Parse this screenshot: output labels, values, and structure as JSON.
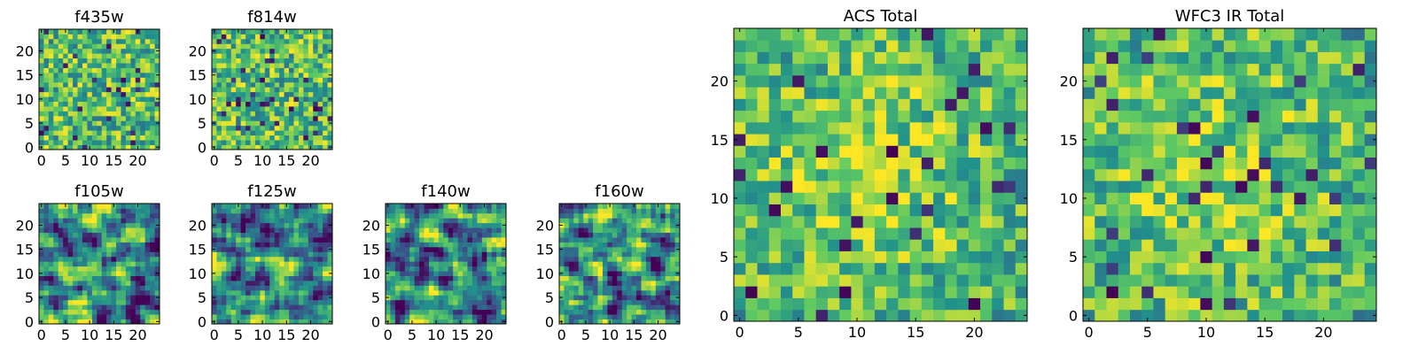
{
  "figure": {
    "colormap": [
      "#440154",
      "#3b528b",
      "#21918c",
      "#5ec962",
      "#fde725"
    ]
  },
  "chart_data": [
    {
      "type": "heatmap",
      "title": "f435w",
      "xticks": [
        "0",
        "5",
        "10",
        "15",
        "20"
      ],
      "yticks": [
        "0",
        "5",
        "10",
        "15",
        "20"
      ],
      "xlim": [
        -0.5,
        24.5
      ],
      "ylim": [
        -0.5,
        24.5
      ],
      "grid": false,
      "pattern": "noise"
    },
    {
      "type": "heatmap",
      "title": "f814w",
      "xticks": [
        "0",
        "5",
        "10",
        "15",
        "20"
      ],
      "yticks": [
        "0",
        "5",
        "10",
        "15",
        "20"
      ],
      "xlim": [
        -0.5,
        24.5
      ],
      "ylim": [
        -0.5,
        24.5
      ],
      "grid": false,
      "pattern": "noise"
    },
    {
      "type": "heatmap",
      "title": "f105w",
      "xticks": [
        "0",
        "5",
        "10",
        "15",
        "20"
      ],
      "yticks": [
        "0",
        "5",
        "10",
        "15",
        "20"
      ],
      "xlim": [
        -0.5,
        24.5
      ],
      "ylim": [
        -0.5,
        24.5
      ],
      "grid": false,
      "pattern": "smooth"
    },
    {
      "type": "heatmap",
      "title": "f125w",
      "xticks": [
        "0",
        "5",
        "10",
        "15",
        "20"
      ],
      "yticks": [
        "0",
        "5",
        "10",
        "15",
        "20"
      ],
      "xlim": [
        -0.5,
        24.5
      ],
      "ylim": [
        -0.5,
        24.5
      ],
      "grid": false,
      "pattern": "smooth"
    },
    {
      "type": "heatmap",
      "title": "f140w",
      "xticks": [
        "0",
        "5",
        "10",
        "15",
        "20"
      ],
      "yticks": [
        "0",
        "5",
        "10",
        "15",
        "20"
      ],
      "xlim": [
        -0.5,
        24.5
      ],
      "ylim": [
        -0.5,
        24.5
      ],
      "grid": false,
      "pattern": "smooth"
    },
    {
      "type": "heatmap",
      "title": "f160w",
      "xticks": [
        "0",
        "5",
        "10",
        "15",
        "20"
      ],
      "yticks": [
        "0",
        "5",
        "10",
        "15",
        "20"
      ],
      "xlim": [
        -0.5,
        24.5
      ],
      "ylim": [
        -0.5,
        24.5
      ],
      "grid": false,
      "pattern": "smooth"
    },
    {
      "type": "heatmap",
      "title": "ACS Total",
      "xticks": [
        "0",
        "5",
        "10",
        "15",
        "20"
      ],
      "yticks": [
        "0",
        "5",
        "10",
        "15",
        "20"
      ],
      "xlim": [
        -0.5,
        24.5
      ],
      "ylim": [
        -0.5,
        24.5
      ],
      "grid": false,
      "pattern": "total"
    },
    {
      "type": "heatmap",
      "title": "WFC3 IR Total",
      "xticks": [
        "0",
        "5",
        "10",
        "15",
        "20"
      ],
      "yticks": [
        "0",
        "5",
        "10",
        "15",
        "20"
      ],
      "xlim": [
        -0.5,
        24.5
      ],
      "ylim": [
        -0.5,
        24.5
      ],
      "grid": false,
      "pattern": "total"
    }
  ]
}
